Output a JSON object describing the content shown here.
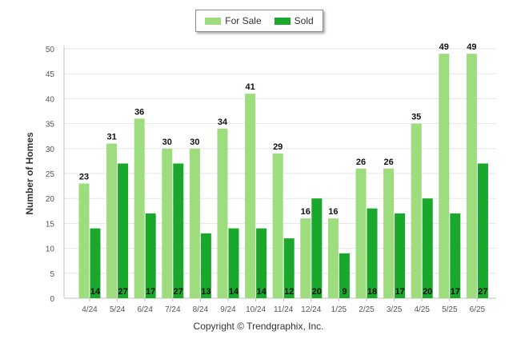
{
  "chart_data": {
    "type": "bar",
    "categories": [
      "4/24",
      "5/24",
      "6/24",
      "7/24",
      "8/24",
      "9/24",
      "10/24",
      "11/24",
      "12/24",
      "1/25",
      "2/25",
      "3/25",
      "4/25",
      "5/25",
      "6/25"
    ],
    "series": [
      {
        "name": "For Sale",
        "color": "#9edd7e",
        "values": [
          23,
          31,
          36,
          30,
          30,
          34,
          41,
          29,
          16,
          16,
          26,
          26,
          35,
          49,
          49
        ]
      },
      {
        "name": "Sold",
        "color": "#19a82b",
        "values": [
          14,
          27,
          17,
          27,
          13,
          14,
          14,
          12,
          20,
          9,
          18,
          17,
          20,
          17,
          27
        ]
      }
    ],
    "title": "",
    "xlabel": "",
    "ylabel": "Number of Homes",
    "ylim": [
      0,
      50
    ],
    "yticks": [
      0,
      5,
      10,
      15,
      20,
      25,
      30,
      35,
      40,
      45,
      50
    ],
    "grid": true,
    "legend": "top-center"
  },
  "footer": {
    "copyright": "Copyright © Trendgraphix, Inc."
  }
}
